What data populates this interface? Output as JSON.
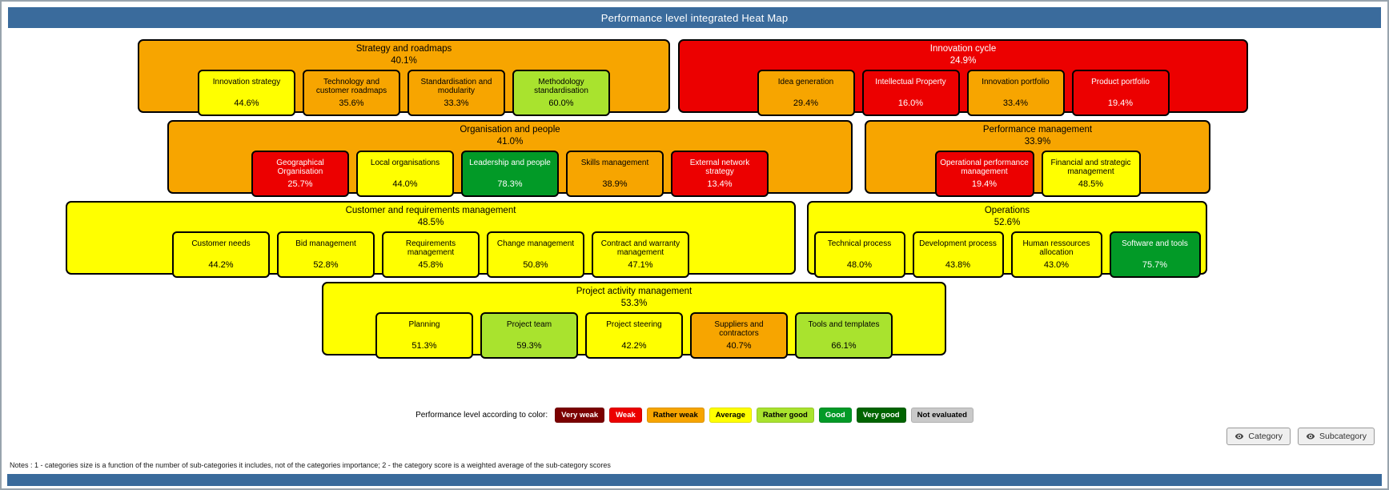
{
  "header": {
    "title": "Performance level integrated Heat Map"
  },
  "levels": {
    "very_weak": {
      "label": "Very weak",
      "bg": "#7B0000",
      "fg": "#FFFFFF"
    },
    "weak": {
      "label": "Weak",
      "bg": "#EC0000",
      "fg": "#FFFFFF"
    },
    "rather_weak": {
      "label": "Rather weak",
      "bg": "#F7A500",
      "fg": "#000000"
    },
    "average": {
      "label": "Average",
      "bg": "#FFFF00",
      "fg": "#000000"
    },
    "rather_good": {
      "label": "Rather good",
      "bg": "#A9E32E",
      "fg": "#000000"
    },
    "good": {
      "label": "Good",
      "bg": "#029A27",
      "fg": "#FFFFFF"
    },
    "very_good": {
      "label": "Very good",
      "bg": "#006400",
      "fg": "#FFFFFF"
    },
    "not_evaluated": {
      "label": "Not evaluated",
      "bg": "#C9C9C9",
      "fg": "#000000"
    }
  },
  "chart_data": {
    "type": "heatmap",
    "title": "Performance level integrated Heat Map",
    "value_unit": "%",
    "categories": [
      {
        "name": "Strategy and roadmaps",
        "score": 40.1,
        "level": "rather_weak",
        "subcategories": [
          {
            "name": "Innovation strategy",
            "score": 44.6,
            "level": "average"
          },
          {
            "name": "Technology and customer roadmaps",
            "score": 35.6,
            "level": "rather_weak"
          },
          {
            "name": "Standardisation and modularity",
            "score": 33.3,
            "level": "rather_weak"
          },
          {
            "name": "Methodology standardisation",
            "score": 60.0,
            "level": "rather_good"
          }
        ]
      },
      {
        "name": "Innovation cycle",
        "score": 24.9,
        "level": "weak",
        "subcategories": [
          {
            "name": "Idea generation",
            "score": 29.4,
            "level": "rather_weak"
          },
          {
            "name": "Intellectual Property",
            "score": 16.0,
            "level": "weak"
          },
          {
            "name": "Innovation portfolio",
            "score": 33.4,
            "level": "rather_weak"
          },
          {
            "name": "Product portfolio",
            "score": 19.4,
            "level": "weak"
          }
        ]
      },
      {
        "name": "Organisation and people",
        "score": 41.0,
        "level": "rather_weak",
        "subcategories": [
          {
            "name": "Geographical Organisation",
            "score": 25.7,
            "level": "weak"
          },
          {
            "name": "Local organisations",
            "score": 44.0,
            "level": "average"
          },
          {
            "name": "Leadership and people",
            "score": 78.3,
            "level": "good"
          },
          {
            "name": "Skills management",
            "score": 38.9,
            "level": "rather_weak"
          },
          {
            "name": "External network strategy",
            "score": 13.4,
            "level": "weak"
          }
        ]
      },
      {
        "name": "Performance management",
        "score": 33.9,
        "level": "rather_weak",
        "subcategories": [
          {
            "name": "Operational performance management",
            "score": 19.4,
            "level": "weak"
          },
          {
            "name": "Financial and strategic management",
            "score": 48.5,
            "level": "average"
          }
        ]
      },
      {
        "name": "Customer and requirements management",
        "score": 48.5,
        "level": "average",
        "subcategories": [
          {
            "name": "Customer needs",
            "score": 44.2,
            "level": "average"
          },
          {
            "name": "Bid management",
            "score": 52.8,
            "level": "average"
          },
          {
            "name": "Requirements management",
            "score": 45.8,
            "level": "average"
          },
          {
            "name": "Change management",
            "score": 50.8,
            "level": "average"
          },
          {
            "name": "Contract and warranty management",
            "score": 47.1,
            "level": "average"
          }
        ]
      },
      {
        "name": "Operations",
        "score": 52.6,
        "level": "average",
        "subcategories": [
          {
            "name": "Technical process",
            "score": 48.0,
            "level": "average"
          },
          {
            "name": "Development process",
            "score": 43.8,
            "level": "average"
          },
          {
            "name": "Human ressources allocation",
            "score": 43.0,
            "level": "average"
          },
          {
            "name": "Software and tools",
            "score": 75.7,
            "level": "good"
          }
        ]
      },
      {
        "name": "Project activity management",
        "score": 53.3,
        "level": "average",
        "subcategories": [
          {
            "name": "Planning",
            "score": 51.3,
            "level": "average"
          },
          {
            "name": "Project team",
            "score": 59.3,
            "level": "rather_good"
          },
          {
            "name": "Project steering",
            "score": 42.2,
            "level": "average"
          },
          {
            "name": "Suppliers and contractors",
            "score": 40.7,
            "level": "rather_weak"
          },
          {
            "name": "Tools and templates",
            "score": 66.1,
            "level": "rather_good"
          }
        ]
      }
    ]
  },
  "legend": {
    "label": "Performance level according to color:",
    "items": [
      {
        "label": "Very weak",
        "level": "very_weak"
      },
      {
        "label": "Weak",
        "level": "weak"
      },
      {
        "label": "Rather weak",
        "level": "rather_weak"
      },
      {
        "label": "Average",
        "level": "average"
      },
      {
        "label": "Rather good",
        "level": "rather_good"
      },
      {
        "label": "Good",
        "level": "good"
      },
      {
        "label": "Very good",
        "level": "very_good"
      },
      {
        "label": "Not evaluated",
        "level": "not_evaluated"
      }
    ]
  },
  "buttons": [
    {
      "label": "Category"
    },
    {
      "label": "Subcategory"
    }
  ],
  "notes": "Notes : 1 - categories size is a function of the number of sub-categories it includes, not of the categories importance; 2 - the category score is a weighted average of the sub-category scores",
  "colors": {
    "header_bar": "#3A6B9C",
    "footer_bar": "#3A6B9C"
  }
}
